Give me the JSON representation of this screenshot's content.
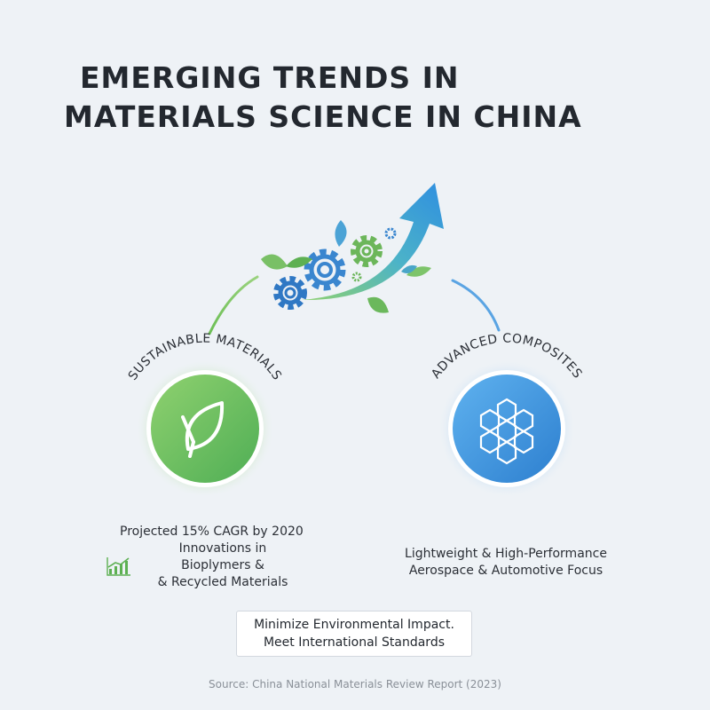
{
  "title": {
    "line1": "EMERGING TRENDS IN",
    "line2": "MATERIALS SCIENCE IN CHINA"
  },
  "sustainable": {
    "label": "SUSTAINABLE MATERIALS",
    "icon": "leaf-icon",
    "color": "#6cbf55",
    "stat": "Projected 15% CAGR by 2020",
    "detail": [
      "Innovations in",
      "Bioplymers &",
      "& Recycled Materials"
    ]
  },
  "composites": {
    "label": "ADVANCED COMPOSITES",
    "icon": "hexagon-structure-icon",
    "color": "#3d8fd6",
    "detail": [
      "Lightweight & High-Performance",
      "Aerospace & Automotive Focus"
    ]
  },
  "callout": {
    "line1": "Minimize Environmental Impact.",
    "line2": "Meet International Standards"
  },
  "source": "Source: China National Materials Review Report (2023)"
}
